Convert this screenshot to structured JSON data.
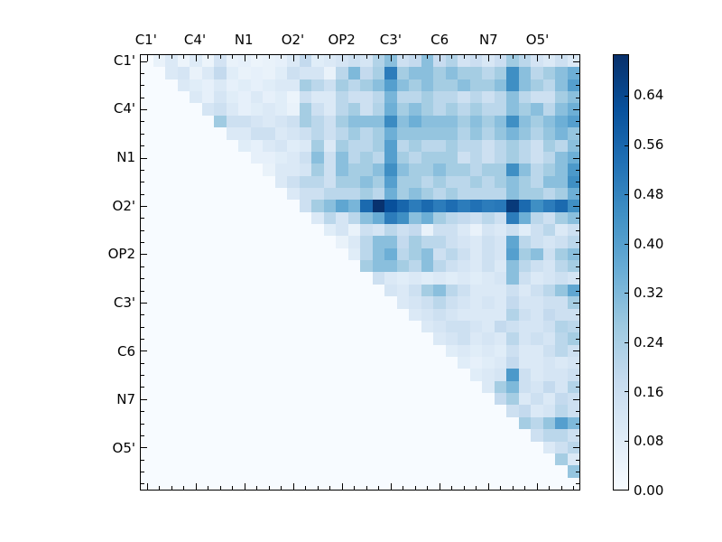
{
  "figure": {
    "background": "#ffffff"
  },
  "colors": {
    "axis": "#000000",
    "blues_anchors": [
      "#f7fbff",
      "#deebf7",
      "#c6dbef",
      "#9ecae1",
      "#6baed6",
      "#4292c6",
      "#2171b5",
      "#08519c",
      "#08306b"
    ]
  },
  "chart_data": {
    "type": "heatmap",
    "title": "",
    "xlabel": "",
    "ylabel": "",
    "colormap": "Blues",
    "legend_position": "colorbar-right",
    "grid": false,
    "n_cells": 36,
    "cells_per_group": 4,
    "x_labels": [
      "C1'",
      "C4'",
      "N1",
      "O2'",
      "OP2",
      "C3'",
      "C6",
      "N7",
      "O5'"
    ],
    "y_labels": [
      "C1'",
      "C4'",
      "N1",
      "O2'",
      "OP2",
      "C3'",
      "C6",
      "N7",
      "O5'"
    ],
    "vmin": 0.0,
    "vmax": 0.7065,
    "colorbar_ticks": [
      0.0,
      0.08,
      0.16,
      0.24,
      0.32,
      0.4,
      0.48,
      0.56,
      0.64
    ],
    "colorbar_tick_labels": [
      "0.00",
      "0.08",
      "0.16",
      "0.24",
      "0.32",
      "0.40",
      "0.48",
      "0.56",
      "0.64"
    ],
    "matrix": [
      [
        0,
        0.05,
        0.1,
        0.04,
        0.09,
        0.04,
        0.13,
        0.05,
        0.06,
        0.04,
        0.05,
        0.06,
        0.1,
        0.18,
        0.08,
        0.1,
        0.12,
        0.15,
        0.12,
        0.22,
        0.3,
        0.15,
        0.18,
        0.3,
        0.17,
        0.22,
        0.13,
        0.16,
        0.11,
        0.16,
        0.26,
        0.2,
        0.13,
        0.1,
        0.15,
        0.1
      ],
      [
        0,
        0,
        0.1,
        0.12,
        0.05,
        0.1,
        0.18,
        0.08,
        0.05,
        0.06,
        0.05,
        0.08,
        0.15,
        0.12,
        0.12,
        0.05,
        0.2,
        0.32,
        0.18,
        0.24,
        0.5,
        0.25,
        0.3,
        0.3,
        0.25,
        0.3,
        0.25,
        0.25,
        0.2,
        0.25,
        0.45,
        0.3,
        0.2,
        0.25,
        0.3,
        0.35
      ],
      [
        0,
        0,
        0,
        0.1,
        0.08,
        0.06,
        0.1,
        0.06,
        0.08,
        0.06,
        0.08,
        0.1,
        0.1,
        0.25,
        0.2,
        0.15,
        0.25,
        0.2,
        0.25,
        0.3,
        0.4,
        0.3,
        0.25,
        0.3,
        0.25,
        0.25,
        0.3,
        0.25,
        0.25,
        0.3,
        0.45,
        0.3,
        0.25,
        0.2,
        0.3,
        0.4
      ],
      [
        0,
        0,
        0,
        0,
        0.1,
        0.06,
        0.12,
        0.08,
        0.06,
        0.1,
        0.06,
        0.08,
        0.04,
        0.15,
        0.1,
        0.1,
        0.2,
        0.15,
        0.15,
        0.2,
        0.33,
        0.2,
        0.2,
        0.25,
        0.2,
        0.2,
        0.15,
        0.2,
        0.15,
        0.2,
        0.3,
        0.2,
        0.15,
        0.15,
        0.25,
        0.3
      ],
      [
        0,
        0,
        0,
        0,
        0,
        0.12,
        0.15,
        0.1,
        0.06,
        0.08,
        0.1,
        0.08,
        0.05,
        0.25,
        0.15,
        0.1,
        0.2,
        0.25,
        0.15,
        0.22,
        0.35,
        0.25,
        0.3,
        0.25,
        0.2,
        0.25,
        0.2,
        0.25,
        0.2,
        0.2,
        0.3,
        0.25,
        0.3,
        0.2,
        0.3,
        0.35
      ],
      [
        0,
        0,
        0,
        0,
        0,
        0,
        0.26,
        0.15,
        0.15,
        0.12,
        0.1,
        0.12,
        0.15,
        0.25,
        0.2,
        0.15,
        0.25,
        0.3,
        0.3,
        0.3,
        0.46,
        0.3,
        0.35,
        0.3,
        0.3,
        0.3,
        0.25,
        0.3,
        0.25,
        0.3,
        0.45,
        0.3,
        0.25,
        0.3,
        0.35,
        0.4
      ],
      [
        0,
        0,
        0,
        0,
        0,
        0,
        0,
        0.1,
        0.1,
        0.15,
        0.15,
        0.1,
        0.12,
        0.15,
        0.2,
        0.15,
        0.2,
        0.26,
        0.2,
        0.25,
        0.35,
        0.28,
        0.28,
        0.28,
        0.28,
        0.28,
        0.22,
        0.28,
        0.22,
        0.28,
        0.33,
        0.28,
        0.22,
        0.28,
        0.33,
        0.28
      ],
      [
        0,
        0,
        0,
        0,
        0,
        0,
        0,
        0,
        0.08,
        0.06,
        0.1,
        0.12,
        0.08,
        0.1,
        0.25,
        0.1,
        0.25,
        0.2,
        0.2,
        0.25,
        0.4,
        0.2,
        0.25,
        0.2,
        0.2,
        0.25,
        0.2,
        0.2,
        0.15,
        0.2,
        0.25,
        0.2,
        0.15,
        0.25,
        0.2,
        0.3
      ],
      [
        0,
        0,
        0,
        0,
        0,
        0,
        0,
        0,
        0,
        0.06,
        0.06,
        0.08,
        0.1,
        0.15,
        0.3,
        0.15,
        0.3,
        0.2,
        0.25,
        0.2,
        0.4,
        0.25,
        0.2,
        0.25,
        0.25,
        0.25,
        0.15,
        0.2,
        0.15,
        0.2,
        0.25,
        0.2,
        0.15,
        0.2,
        0.3,
        0.35
      ],
      [
        0,
        0,
        0,
        0,
        0,
        0,
        0,
        0,
        0,
        0,
        0.05,
        0.1,
        0.1,
        0.12,
        0.25,
        0.15,
        0.3,
        0.25,
        0.25,
        0.3,
        0.45,
        0.3,
        0.25,
        0.25,
        0.3,
        0.25,
        0.25,
        0.2,
        0.25,
        0.25,
        0.45,
        0.3,
        0.2,
        0.25,
        0.3,
        0.42
      ],
      [
        0,
        0,
        0,
        0,
        0,
        0,
        0,
        0,
        0,
        0,
        0,
        0.1,
        0.15,
        0.2,
        0.2,
        0.15,
        0.25,
        0.25,
        0.3,
        0.25,
        0.4,
        0.25,
        0.25,
        0.2,
        0.25,
        0.2,
        0.2,
        0.25,
        0.2,
        0.25,
        0.3,
        0.25,
        0.2,
        0.3,
        0.3,
        0.45
      ],
      [
        0,
        0,
        0,
        0,
        0,
        0,
        0,
        0,
        0,
        0,
        0,
        0,
        0.1,
        0.15,
        0.15,
        0.2,
        0.2,
        0.2,
        0.25,
        0.2,
        0.35,
        0.25,
        0.3,
        0.25,
        0.2,
        0.25,
        0.2,
        0.2,
        0.2,
        0.2,
        0.3,
        0.25,
        0.25,
        0.2,
        0.25,
        0.35
      ],
      [
        0,
        0,
        0,
        0,
        0,
        0,
        0,
        0,
        0,
        0,
        0,
        0,
        0,
        0.15,
        0.25,
        0.3,
        0.38,
        0.33,
        0.55,
        0.7,
        0.62,
        0.56,
        0.5,
        0.55,
        0.5,
        0.54,
        0.5,
        0.53,
        0.5,
        0.51,
        0.68,
        0.55,
        0.45,
        0.5,
        0.55,
        0.45
      ],
      [
        0,
        0,
        0,
        0,
        0,
        0,
        0,
        0,
        0,
        0,
        0,
        0,
        0,
        0,
        0.1,
        0.2,
        0.12,
        0.2,
        0.3,
        0.36,
        0.5,
        0.45,
        0.3,
        0.35,
        0.25,
        0.2,
        0.18,
        0.15,
        0.2,
        0.15,
        0.5,
        0.35,
        0.2,
        0.15,
        0.25,
        0.3
      ],
      [
        0,
        0,
        0,
        0,
        0,
        0,
        0,
        0,
        0,
        0,
        0,
        0,
        0,
        0,
        0,
        0.08,
        0.12,
        0.05,
        0.15,
        0.12,
        0.2,
        0.15,
        0.18,
        0.05,
        0.15,
        0.15,
        0.1,
        0.05,
        0.12,
        0.1,
        0.15,
        0.08,
        0.15,
        0.2,
        0.1,
        0.15
      ],
      [
        0,
        0,
        0,
        0,
        0,
        0,
        0,
        0,
        0,
        0,
        0,
        0,
        0,
        0,
        0,
        0,
        0.05,
        0.1,
        0.2,
        0.3,
        0.3,
        0.18,
        0.25,
        0.2,
        0.2,
        0.15,
        0.12,
        0.1,
        0.15,
        0.12,
        0.38,
        0.2,
        0.15,
        0.12,
        0.15,
        0.2
      ],
      [
        0,
        0,
        0,
        0,
        0,
        0,
        0,
        0,
        0,
        0,
        0,
        0,
        0,
        0,
        0,
        0,
        0,
        0.08,
        0.2,
        0.3,
        0.35,
        0.2,
        0.25,
        0.3,
        0.15,
        0.2,
        0.15,
        0.1,
        0.15,
        0.12,
        0.4,
        0.25,
        0.3,
        0.15,
        0.25,
        0.3
      ],
      [
        0,
        0,
        0,
        0,
        0,
        0,
        0,
        0,
        0,
        0,
        0,
        0,
        0,
        0,
        0,
        0,
        0,
        0,
        0.25,
        0.3,
        0.3,
        0.25,
        0.2,
        0.3,
        0.2,
        0.15,
        0.12,
        0.1,
        0.15,
        0.1,
        0.3,
        0.2,
        0.15,
        0.12,
        0.2,
        0.25
      ],
      [
        0,
        0,
        0,
        0,
        0,
        0,
        0,
        0,
        0,
        0,
        0,
        0,
        0,
        0,
        0,
        0,
        0,
        0,
        0,
        0.15,
        0.1,
        0.08,
        0.1,
        0.08,
        0.1,
        0.08,
        0.1,
        0.08,
        0.1,
        0.12,
        0.3,
        0.15,
        0.1,
        0.12,
        0.15,
        0.12
      ],
      [
        0,
        0,
        0,
        0,
        0,
        0,
        0,
        0,
        0,
        0,
        0,
        0,
        0,
        0,
        0,
        0,
        0,
        0,
        0,
        0,
        0.12,
        0.1,
        0.15,
        0.25,
        0.3,
        0.2,
        0.15,
        0.1,
        0.1,
        0.1,
        0.15,
        0.1,
        0.15,
        0.2,
        0.28,
        0.38
      ],
      [
        0,
        0,
        0,
        0,
        0,
        0,
        0,
        0,
        0,
        0,
        0,
        0,
        0,
        0,
        0,
        0,
        0,
        0,
        0,
        0,
        0,
        0.1,
        0.12,
        0.15,
        0.2,
        0.15,
        0.12,
        0.1,
        0.12,
        0.1,
        0.18,
        0.12,
        0.12,
        0.15,
        0.15,
        0.25
      ],
      [
        0,
        0,
        0,
        0,
        0,
        0,
        0,
        0,
        0,
        0,
        0,
        0,
        0,
        0,
        0,
        0,
        0,
        0,
        0,
        0,
        0,
        0,
        0.1,
        0.12,
        0.15,
        0.12,
        0.1,
        0.1,
        0.1,
        0.1,
        0.22,
        0.15,
        0.12,
        0.18,
        0.15,
        0.15
      ],
      [
        0,
        0,
        0,
        0,
        0,
        0,
        0,
        0,
        0,
        0,
        0,
        0,
        0,
        0,
        0,
        0,
        0,
        0,
        0,
        0,
        0,
        0,
        0,
        0.1,
        0.12,
        0.15,
        0.15,
        0.12,
        0.1,
        0.18,
        0.15,
        0.12,
        0.12,
        0.15,
        0.22,
        0.2
      ],
      [
        0,
        0,
        0,
        0,
        0,
        0,
        0,
        0,
        0,
        0,
        0,
        0,
        0,
        0,
        0,
        0,
        0,
        0,
        0,
        0,
        0,
        0,
        0,
        0,
        0.1,
        0.12,
        0.15,
        0.1,
        0.12,
        0.1,
        0.2,
        0.12,
        0.15,
        0.12,
        0.2,
        0.25
      ],
      [
        0,
        0,
        0,
        0,
        0,
        0,
        0,
        0,
        0,
        0,
        0,
        0,
        0,
        0,
        0,
        0,
        0,
        0,
        0,
        0,
        0,
        0,
        0,
        0,
        0,
        0.08,
        0.1,
        0.08,
        0.1,
        0.08,
        0.15,
        0.1,
        0.1,
        0.15,
        0.2,
        0.15
      ],
      [
        0,
        0,
        0,
        0,
        0,
        0,
        0,
        0,
        0,
        0,
        0,
        0,
        0,
        0,
        0,
        0,
        0,
        0,
        0,
        0,
        0,
        0,
        0,
        0,
        0,
        0,
        0.08,
        0.06,
        0.08,
        0.1,
        0.18,
        0.1,
        0.1,
        0.12,
        0.1,
        0.12
      ],
      [
        0,
        0,
        0,
        0,
        0,
        0,
        0,
        0,
        0,
        0,
        0,
        0,
        0,
        0,
        0,
        0,
        0,
        0,
        0,
        0,
        0,
        0,
        0,
        0,
        0,
        0,
        0,
        0.08,
        0.1,
        0.12,
        0.42,
        0.15,
        0.1,
        0.12,
        0.12,
        0.15
      ],
      [
        0,
        0,
        0,
        0,
        0,
        0,
        0,
        0,
        0,
        0,
        0,
        0,
        0,
        0,
        0,
        0,
        0,
        0,
        0,
        0,
        0,
        0,
        0,
        0,
        0,
        0,
        0,
        0,
        0.1,
        0.25,
        0.32,
        0.15,
        0.12,
        0.18,
        0.12,
        0.22
      ],
      [
        0,
        0,
        0,
        0,
        0,
        0,
        0,
        0,
        0,
        0,
        0,
        0,
        0,
        0,
        0,
        0,
        0,
        0,
        0,
        0,
        0,
        0,
        0,
        0,
        0,
        0,
        0,
        0,
        0,
        0.18,
        0.25,
        0.1,
        0.15,
        0.1,
        0.18,
        0.15
      ],
      [
        0,
        0,
        0,
        0,
        0,
        0,
        0,
        0,
        0,
        0,
        0,
        0,
        0,
        0,
        0,
        0,
        0,
        0,
        0,
        0,
        0,
        0,
        0,
        0,
        0,
        0,
        0,
        0,
        0,
        0,
        0.15,
        0.18,
        0.1,
        0.12,
        0.2,
        0.15
      ],
      [
        0,
        0,
        0,
        0,
        0,
        0,
        0,
        0,
        0,
        0,
        0,
        0,
        0,
        0,
        0,
        0,
        0,
        0,
        0,
        0,
        0,
        0,
        0,
        0,
        0,
        0,
        0,
        0,
        0,
        0,
        0,
        0.25,
        0.2,
        0.28,
        0.4,
        0.32
      ],
      [
        0,
        0,
        0,
        0,
        0,
        0,
        0,
        0,
        0,
        0,
        0,
        0,
        0,
        0,
        0,
        0,
        0,
        0,
        0,
        0,
        0,
        0,
        0,
        0,
        0,
        0,
        0,
        0,
        0,
        0,
        0,
        0,
        0.15,
        0.2,
        0.2,
        0.15
      ],
      [
        0,
        0,
        0,
        0,
        0,
        0,
        0,
        0,
        0,
        0,
        0,
        0,
        0,
        0,
        0,
        0,
        0,
        0,
        0,
        0,
        0,
        0,
        0,
        0,
        0,
        0,
        0,
        0,
        0,
        0,
        0,
        0,
        0,
        0.1,
        0.15,
        0.2
      ],
      [
        0,
        0,
        0,
        0,
        0,
        0,
        0,
        0,
        0,
        0,
        0,
        0,
        0,
        0,
        0,
        0,
        0,
        0,
        0,
        0,
        0,
        0,
        0,
        0,
        0,
        0,
        0,
        0,
        0,
        0,
        0,
        0,
        0,
        0,
        0.25,
        0.1
      ],
      [
        0,
        0,
        0,
        0,
        0,
        0,
        0,
        0,
        0,
        0,
        0,
        0,
        0,
        0,
        0,
        0,
        0,
        0,
        0,
        0,
        0,
        0,
        0,
        0,
        0,
        0,
        0,
        0,
        0,
        0,
        0,
        0,
        0,
        0,
        0,
        0.28
      ],
      [
        0,
        0,
        0,
        0,
        0,
        0,
        0,
        0,
        0,
        0,
        0,
        0,
        0,
        0,
        0,
        0,
        0,
        0,
        0,
        0,
        0,
        0,
        0,
        0,
        0,
        0,
        0,
        0,
        0,
        0,
        0,
        0,
        0,
        0,
        0,
        0
      ]
    ]
  }
}
